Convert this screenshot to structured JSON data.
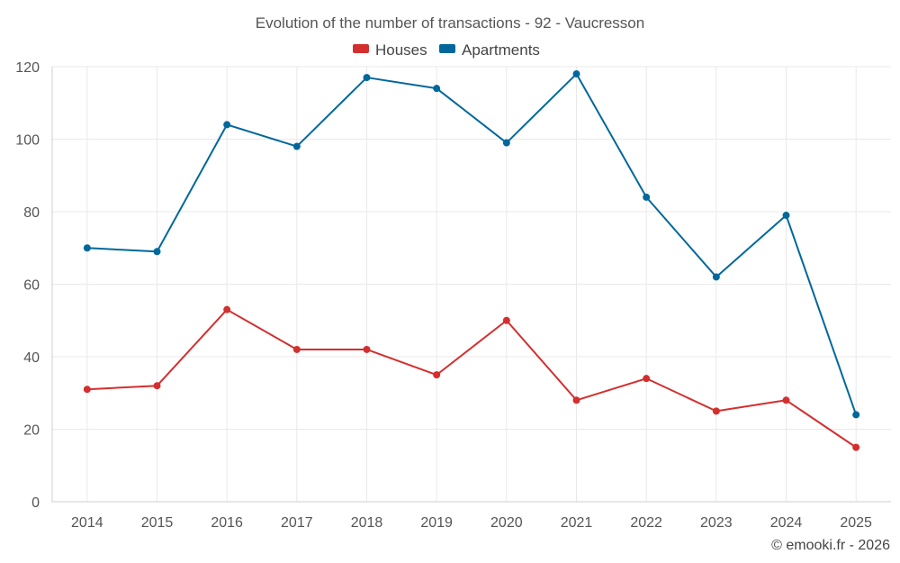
{
  "chart_data": {
    "type": "line",
    "title": "Evolution of the number of transactions - 92 - Vaucresson",
    "xlabel": "",
    "ylabel": "",
    "x": [
      "2014",
      "2015",
      "2016",
      "2017",
      "2018",
      "2019",
      "2020",
      "2021",
      "2022",
      "2023",
      "2024",
      "2025"
    ],
    "ylim": [
      0,
      120
    ],
    "yticks": [
      0,
      20,
      40,
      60,
      80,
      100,
      120
    ],
    "grid": true,
    "legend_position": "top-center",
    "series": [
      {
        "name": "Houses",
        "color": "#d32f2f",
        "values": [
          31,
          32,
          53,
          42,
          42,
          35,
          50,
          28,
          34,
          25,
          28,
          15
        ]
      },
      {
        "name": "Apartments",
        "color": "#01689b",
        "values": [
          70,
          69,
          104,
          98,
          117,
          114,
          99,
          118,
          84,
          62,
          79,
          24
        ]
      }
    ]
  },
  "credit": "© emooki.fr - 2026"
}
